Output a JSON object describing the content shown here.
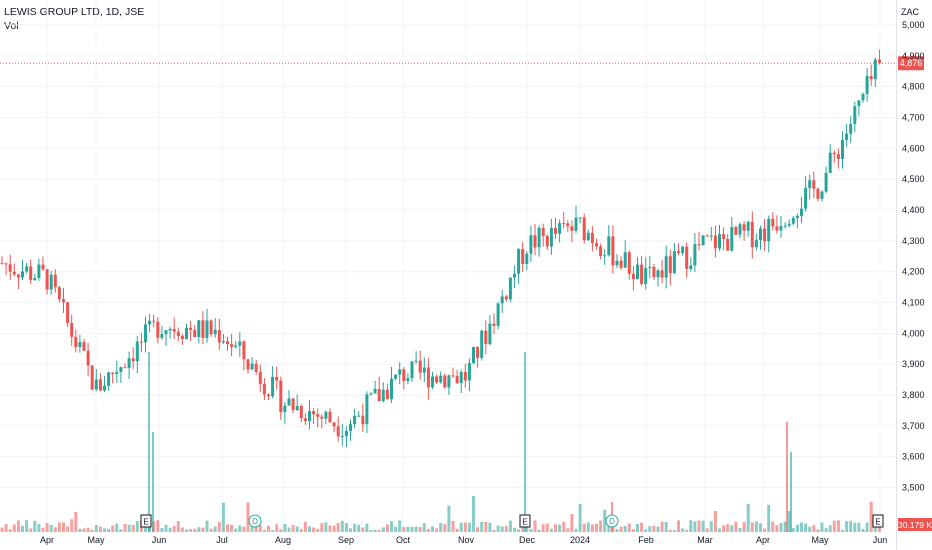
{
  "header": {
    "title": "LEWIS GROUP LTD, 1D, JSE",
    "volume_label": "Vol"
  },
  "currency_label": "ZAC",
  "last_price_label": "4,876",
  "last_volume_label": "30.179 K",
  "colors": {
    "up": "#26a69a",
    "down": "#ef5350",
    "grid": "#f0f3fa",
    "axis_text": "#131722",
    "price_line": "#ef5350",
    "event_E": "#131722",
    "event_D": "#22ab94"
  },
  "events": [
    {
      "type": "E",
      "date_label": "May-end"
    },
    {
      "type": "D",
      "date_label": "Jul"
    },
    {
      "type": "E",
      "date_label": "Nov-end"
    },
    {
      "type": "D",
      "date_label": "Jan"
    },
    {
      "type": "E",
      "date_label": "Jun"
    }
  ],
  "chart_data": {
    "type": "candlestick",
    "title": "LEWIS GROUP LTD, 1D, JSE",
    "ylim": [
      3450,
      5000
    ],
    "y_ticks": [
      "3,500",
      "3,600",
      "3,700",
      "3,800",
      "3,900",
      "4,000",
      "4,100",
      "4,200",
      "4,300",
      "4,400",
      "4,500",
      "4,600",
      "4,700",
      "4,800",
      "4,900",
      "5,000"
    ],
    "x_ticks": [
      "Apr",
      "May",
      "Jun",
      "Jul",
      "Aug",
      "Sep",
      "Oct",
      "Nov",
      "Dec",
      "2024",
      "Feb",
      "Mar",
      "Apr",
      "May",
      "Jun"
    ],
    "last_price": 4876,
    "anchors": [
      {
        "month": "Mar",
        "close": 4230
      },
      {
        "month": "Apr",
        "close": 4180
      },
      {
        "month": "May",
        "close": 3820
      },
      {
        "month": "Jun",
        "close": 4030
      },
      {
        "month": "Jul",
        "close": 4000
      },
      {
        "month": "Aug",
        "close": 3780
      },
      {
        "month": "Sep",
        "close": 3700
      },
      {
        "month": "Oct",
        "close": 3870
      },
      {
        "month": "Nov",
        "close": 3860
      },
      {
        "month": "Dec",
        "close": 4290
      },
      {
        "month": "2024",
        "close": 4350
      },
      {
        "month": "Feb",
        "close": 4170
      },
      {
        "month": "Mar",
        "close": 4290
      },
      {
        "month": "Apr",
        "close": 4330
      },
      {
        "month": "May",
        "close": 4480
      },
      {
        "month": "Jun",
        "close": 4876
      }
    ]
  }
}
